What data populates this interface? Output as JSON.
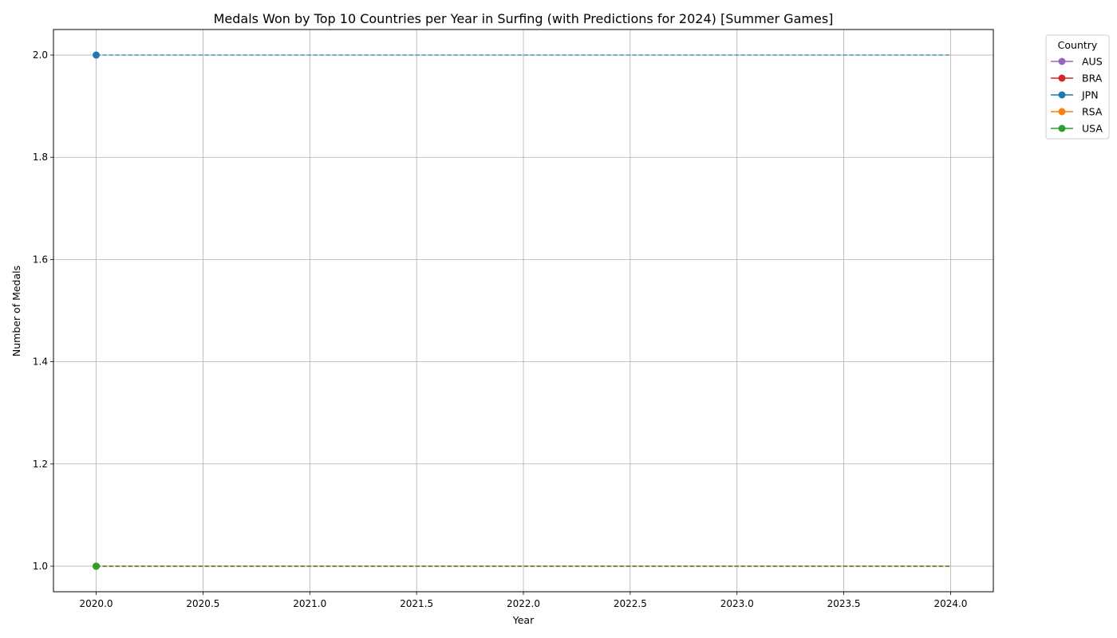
{
  "chart_data": {
    "type": "line",
    "title": "Medals Won by Top 10 Countries per Year in Surfing (with Predictions for 2024) [Summer Games]",
    "xlabel": "Year",
    "ylabel": "Number of Medals",
    "xlim": [
      2019.8,
      2024.2
    ],
    "ylim": [
      0.95,
      2.05
    ],
    "xticks": [
      2020.0,
      2020.5,
      2021.0,
      2021.5,
      2022.0,
      2022.5,
      2023.0,
      2023.5,
      2024.0
    ],
    "xtick_labels": [
      "2020.0",
      "2020.5",
      "2021.0",
      "2021.5",
      "2022.0",
      "2022.5",
      "2023.0",
      "2023.5",
      "2024.0"
    ],
    "yticks": [
      1.0,
      1.2,
      1.4,
      1.6,
      1.8,
      2.0
    ],
    "ytick_labels": [
      "1.0",
      "1.2",
      "1.4",
      "1.6",
      "1.8",
      "2.0"
    ],
    "grid": true,
    "legend": {
      "title": "Country",
      "placement": "outside top-right"
    },
    "series": [
      {
        "name": "AUS",
        "color": "#9467bd",
        "actual": [
          {
            "x": 2020,
            "y": 1
          }
        ],
        "predicted": [
          {
            "x": 2020,
            "y": 1
          },
          {
            "x": 2024,
            "y": 1
          }
        ]
      },
      {
        "name": "BRA",
        "color": "#d62728",
        "actual": [
          {
            "x": 2020,
            "y": 1
          }
        ],
        "predicted": [
          {
            "x": 2020,
            "y": 1
          },
          {
            "x": 2024,
            "y": 1
          }
        ]
      },
      {
        "name": "JPN",
        "color": "#1f77b4",
        "actual": [
          {
            "x": 2020,
            "y": 2
          }
        ],
        "predicted": [
          {
            "x": 2020,
            "y": 2
          },
          {
            "x": 2024,
            "y": 2
          }
        ]
      },
      {
        "name": "RSA",
        "color": "#ff7f0e",
        "actual": [
          {
            "x": 2020,
            "y": 1
          }
        ],
        "predicted": [
          {
            "x": 2020,
            "y": 1
          },
          {
            "x": 2024,
            "y": 1
          }
        ]
      },
      {
        "name": "USA",
        "color": "#2ca02c",
        "actual": [
          {
            "x": 2020,
            "y": 1
          }
        ],
        "predicted": [
          {
            "x": 2020,
            "y": 1
          },
          {
            "x": 2024,
            "y": 1
          }
        ]
      }
    ]
  }
}
